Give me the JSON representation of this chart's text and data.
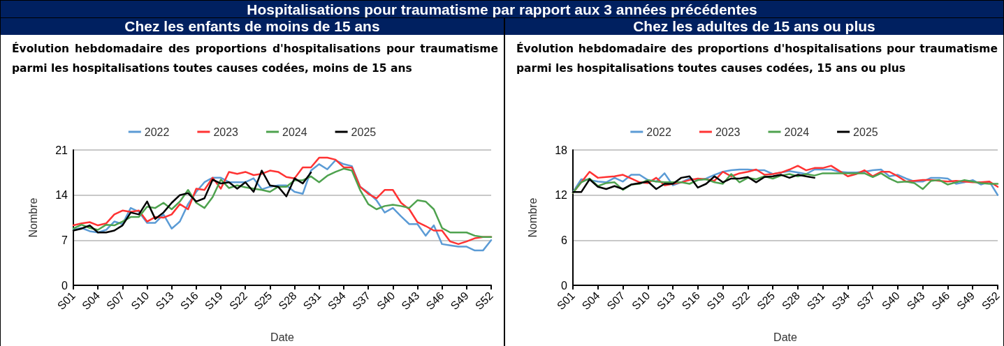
{
  "chart_data": [
    {
      "type": "line",
      "annotations": [
        "Hospitalisations pour traumatisme par rapport aux 3 années précédentes"
      ],
      "title": "Chez les enfants de moins de 15 ans",
      "subtitle": "Évolution hebdomadaire des proportions d'hospitalisations pour traumatisme parmi les hospitalisations toutes causes codées, moins de 15 ans",
      "xlabel": "Date",
      "ylabel": "Nombre",
      "categories": [
        "S01",
        null,
        null,
        "S04",
        null,
        null,
        "S07",
        null,
        null,
        "S10",
        null,
        null,
        "S13",
        null,
        null,
        "S16",
        null,
        null,
        "S19",
        null,
        null,
        "S22",
        null,
        null,
        "S25",
        null,
        null,
        "S28",
        null,
        null,
        "S31",
        null,
        null,
        "S34",
        null,
        null,
        "S37",
        null,
        null,
        "S40",
        null,
        null,
        "S43",
        null,
        null,
        "S46",
        null,
        null,
        "S49",
        null,
        null,
        "S52"
      ],
      "ylim": [
        0,
        21
      ],
      "yticks": [
        0,
        7,
        14,
        21
      ],
      "grid": "y",
      "legend": "top",
      "marker": "none",
      "line_style": "solid",
      "series": [
        {
          "name": "2022",
          "color": "#5b9bd5",
          "values": [
            8.6,
            8.9,
            8.4,
            8.2,
            8.6,
            9.9,
            9.5,
            12.0,
            11.4,
            9.7,
            9.7,
            11.0,
            8.8,
            9.9,
            12.6,
            14.5,
            16.0,
            16.7,
            16.7,
            16.0,
            16.0,
            16.0,
            16.6,
            14.9,
            15.3,
            15.5,
            15.5,
            14.5,
            14.2,
            17.8,
            18.8,
            18.0,
            19.4,
            18.8,
            18.5,
            15.3,
            14.4,
            13.2,
            11.3,
            12.0,
            10.7,
            9.5,
            9.5,
            7.7,
            9.3,
            6.4,
            6.2,
            6.0,
            6.0,
            5.4,
            5.4,
            7.0
          ]
        },
        {
          "name": "2023",
          "color": "#ff3333",
          "values": [
            9.3,
            9.6,
            9.8,
            9.3,
            9.6,
            11.0,
            11.6,
            11.4,
            11.6,
            9.9,
            10.6,
            10.5,
            11.0,
            12.6,
            11.8,
            15.0,
            14.8,
            16.7,
            15.0,
            17.6,
            17.3,
            17.6,
            17.1,
            17.3,
            17.8,
            17.6,
            16.8,
            16.6,
            18.3,
            18.3,
            19.8,
            19.8,
            19.5,
            18.3,
            18.3,
            15.3,
            14.2,
            13.5,
            14.8,
            14.8,
            12.8,
            11.8,
            9.8,
            9.2,
            8.5,
            8.5,
            6.8,
            6.4,
            6.8,
            7.3,
            7.5,
            7.5
          ]
        },
        {
          "name": "2024",
          "color": "#4ea24e",
          "values": [
            8.8,
            9.4,
            8.9,
            8.6,
            9.4,
            9.3,
            9.9,
            10.6,
            10.6,
            12.2,
            12.0,
            12.8,
            11.8,
            13.0,
            14.8,
            12.8,
            12.0,
            13.7,
            16.4,
            15.1,
            15.5,
            15.2,
            15.0,
            14.8,
            14.5,
            15.3,
            15.3,
            16.3,
            16.3,
            16.9,
            16.0,
            17.0,
            17.6,
            18.1,
            17.8,
            14.8,
            12.6,
            11.8,
            12.3,
            12.5,
            12.3,
            12.0,
            13.2,
            13.0,
            11.8,
            8.9,
            8.2,
            8.2,
            8.2,
            7.7,
            7.5,
            7.5
          ]
        },
        {
          "name": "2025",
          "color": "#000000",
          "values": [
            8.5,
            8.8,
            9.3,
            8.2,
            8.2,
            8.5,
            9.3,
            11.3,
            11.0,
            13.0,
            10.3,
            11.3,
            12.8,
            14.0,
            14.3,
            13.0,
            13.5,
            16.4,
            15.8,
            16.0,
            15.0,
            16.0,
            14.5,
            17.8,
            15.5,
            15.3,
            13.8,
            16.6,
            15.8,
            17.5,
            null,
            null,
            null,
            null,
            null,
            null,
            null,
            null,
            null,
            null,
            null,
            null,
            null,
            null,
            null,
            null,
            null,
            null,
            null,
            null,
            null,
            null
          ]
        }
      ]
    },
    {
      "type": "line",
      "title": "Chez les adultes de 15 ans ou plus",
      "subtitle": "Évolution hebdomadaire des proportions d'hospitalisations pour traumatisme parmi les hospitalisations toutes causes codées, 15 ans ou plus",
      "xlabel": "Date",
      "ylabel": "Nombre",
      "categories": [
        "S01",
        null,
        null,
        "S04",
        null,
        null,
        "S07",
        null,
        null,
        "S10",
        null,
        null,
        "S13",
        null,
        null,
        "S16",
        null,
        null,
        "S19",
        null,
        null,
        "S22",
        null,
        null,
        "S25",
        null,
        null,
        "S28",
        null,
        null,
        "S31",
        null,
        null,
        "S34",
        null,
        null,
        "S37",
        null,
        null,
        "S40",
        null,
        null,
        "S43",
        null,
        null,
        "S46",
        null,
        null,
        "S49",
        null,
        null,
        "S52"
      ],
      "ylim": [
        0,
        18
      ],
      "yticks": [
        0,
        6,
        12,
        18
      ],
      "grid": "y",
      "legend": "top",
      "marker": "none",
      "line_style": "solid",
      "series": [
        {
          "name": "2022",
          "color": "#5b9bd5",
          "values": [
            12.4,
            14.1,
            14.0,
            13.8,
            13.7,
            14.3,
            13.8,
            14.7,
            14.7,
            14.0,
            13.8,
            14.9,
            13.3,
            13.7,
            14.2,
            14.0,
            14.2,
            14.7,
            15.1,
            15.3,
            15.4,
            15.4,
            15.3,
            15.3,
            14.8,
            15.0,
            15.2,
            15.0,
            14.8,
            15.4,
            15.4,
            15.4,
            15.1,
            15.0,
            15.0,
            15.1,
            15.3,
            15.4,
            14.5,
            14.7,
            14.2,
            13.8,
            13.8,
            14.3,
            14.3,
            14.2,
            13.5,
            13.7,
            14.0,
            13.4,
            13.8,
            12.0
          ]
        },
        {
          "name": "2023",
          "color": "#ff3333",
          "values": [
            12.3,
            13.7,
            15.1,
            14.3,
            14.4,
            14.5,
            14.7,
            14.2,
            13.7,
            13.6,
            14.3,
            13.3,
            13.5,
            13.7,
            14.0,
            14.2,
            14.1,
            13.9,
            15.1,
            14.5,
            14.9,
            15.1,
            15.4,
            14.7,
            14.8,
            15.0,
            15.4,
            15.9,
            15.3,
            15.6,
            15.6,
            15.9,
            15.2,
            14.5,
            14.8,
            15.3,
            14.5,
            15.1,
            15.1,
            14.5,
            13.8,
            13.9,
            14.0,
            14.0,
            13.9,
            13.8,
            13.9,
            13.8,
            13.7,
            13.7,
            13.8,
            13.1
          ]
        },
        {
          "name": "2024",
          "color": "#4ea24e",
          "values": [
            12.3,
            13.7,
            14.2,
            13.2,
            13.6,
            13.7,
            12.7,
            13.4,
            13.5,
            14.0,
            13.8,
            13.7,
            13.7,
            13.7,
            13.5,
            14.0,
            14.1,
            13.7,
            13.5,
            14.8,
            13.7,
            14.3,
            14.1,
            14.5,
            14.2,
            14.6,
            14.8,
            14.5,
            14.8,
            14.6,
            14.9,
            14.9,
            14.9,
            14.9,
            14.9,
            14.9,
            14.4,
            14.9,
            14.2,
            13.7,
            13.8,
            13.6,
            12.8,
            13.9,
            14.0,
            13.4,
            13.7,
            14.0,
            13.8,
            13.6,
            13.5,
            13.5
          ]
        },
        {
          "name": "2025",
          "color": "#000000",
          "values": [
            12.4,
            12.4,
            14.1,
            13.1,
            12.8,
            13.2,
            12.8,
            13.4,
            13.6,
            13.8,
            12.8,
            13.5,
            13.5,
            14.3,
            14.5,
            13.0,
            13.5,
            14.5,
            13.7,
            14.2,
            14.2,
            14.4,
            13.7,
            14.4,
            14.5,
            14.7,
            14.3,
            14.7,
            14.5,
            14.3,
            null,
            null,
            null,
            null,
            null,
            null,
            null,
            null,
            null,
            null,
            null,
            null,
            null,
            null,
            null,
            null,
            null,
            null,
            null,
            null,
            null,
            null
          ]
        }
      ]
    }
  ]
}
